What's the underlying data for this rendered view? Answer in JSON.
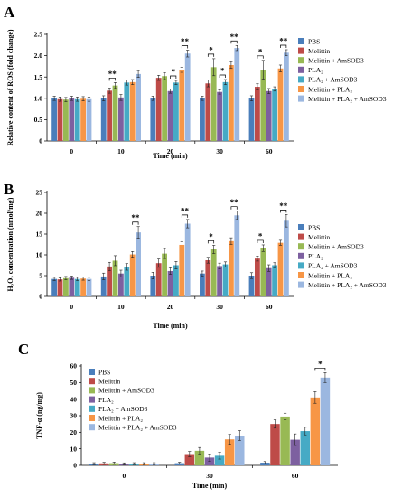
{
  "colors": {
    "PBS": "#4a7ebb",
    "Melittin": "#be4b48",
    "Melittin + AmSOD3": "#98b954",
    "PLA2": "#7d60a0",
    "PLA2 + AmSOD3": "#46aac5",
    "Melittin + PLA2": "#f79646",
    "Melittin + PLA2 + AmSOD3": "#9bb7e0"
  },
  "chart_data": [
    {
      "panel": "A",
      "type": "bar",
      "xlabel": "Time (min)",
      "ylabel": "Relative content of ROS (fold change)",
      "ylim": [
        0,
        2.5
      ],
      "yticks": [
        "0",
        "0.5",
        "1.0",
        "1.5",
        "2.0",
        "2.5"
      ],
      "categories": [
        "0",
        "10",
        "20",
        "30",
        "60"
      ],
      "legend_position": "right",
      "series": [
        {
          "name": "PBS",
          "legend_label": "PBS",
          "values": [
            1.0,
            1.0,
            1.0,
            1.0,
            1.0
          ],
          "errors": [
            0.05,
            0.06,
            0.05,
            0.05,
            0.06
          ]
        },
        {
          "name": "Melittin",
          "legend_label": "Melittin",
          "values": [
            0.98,
            1.18,
            1.48,
            1.35,
            1.27
          ],
          "errors": [
            0.05,
            0.06,
            0.06,
            0.08,
            0.07
          ]
        },
        {
          "name": "Melittin + AmSOD3",
          "legend_label": "Melittin + AmSOD3",
          "values": [
            0.97,
            1.3,
            1.52,
            1.73,
            1.67
          ],
          "errors": [
            0.05,
            0.07,
            0.08,
            0.2,
            0.22
          ]
        },
        {
          "name": "PLA2",
          "legend_label": "PLA₂",
          "values": [
            1.0,
            1.02,
            1.17,
            1.15,
            1.17
          ],
          "errors": [
            0.05,
            0.07,
            0.05,
            0.05,
            0.06
          ]
        },
        {
          "name": "PLA2 + AmSOD3",
          "legend_label": "PLA₂ + AmSOD3",
          "values": [
            0.98,
            1.37,
            1.37,
            1.38,
            1.22
          ],
          "errors": [
            0.05,
            0.06,
            0.05,
            0.06,
            0.05
          ]
        },
        {
          "name": "Melittin + PLA2",
          "legend_label": "Melittin + PLA₂",
          "values": [
            0.99,
            1.38,
            1.67,
            1.78,
            1.7
          ],
          "errors": [
            0.05,
            0.06,
            0.06,
            0.08,
            0.08
          ]
        },
        {
          "name": "Melittin + PLA2 + AmSOD3",
          "legend_label": "Melittin + PLA₂ + AmSOD3",
          "values": [
            0.98,
            1.57,
            2.05,
            2.18,
            2.07
          ],
          "errors": [
            0.05,
            0.08,
            0.08,
            0.06,
            0.07
          ]
        }
      ],
      "significance": [
        {
          "category": 1,
          "from": 1,
          "to": 2,
          "label": "**"
        },
        {
          "category": 2,
          "from": 3,
          "to": 4,
          "label": "*"
        },
        {
          "category": 2,
          "from": 5,
          "to": 6,
          "label": "**"
        },
        {
          "category": 3,
          "from": 1,
          "to": 2,
          "label": "*"
        },
        {
          "category": 3,
          "from": 3,
          "to": 4,
          "label": "*"
        },
        {
          "category": 3,
          "from": 5,
          "to": 6,
          "label": "**"
        },
        {
          "category": 4,
          "from": 1,
          "to": 2,
          "label": "*"
        },
        {
          "category": 4,
          "from": 5,
          "to": 6,
          "label": "**"
        }
      ]
    },
    {
      "panel": "B",
      "type": "bar",
      "xlabel": "Time (min)",
      "ylabel": "H₂O₂ concentration (nmol/mg)",
      "ylim": [
        0,
        25
      ],
      "yticks": [
        "0",
        "5",
        "10",
        "15",
        "20",
        "25"
      ],
      "categories": [
        "0",
        "10",
        "20",
        "30",
        "60"
      ],
      "legend_position": "right",
      "series": [
        {
          "name": "PBS",
          "legend_label": "PBS",
          "values": [
            4.2,
            4.8,
            5.0,
            5.5,
            5.0
          ],
          "errors": [
            0.4,
            0.8,
            0.8,
            0.6,
            0.7
          ]
        },
        {
          "name": "Melittin",
          "legend_label": "Melittin",
          "values": [
            4.1,
            7.2,
            8.0,
            8.7,
            9.1
          ],
          "errors": [
            0.4,
            1.0,
            1.0,
            0.7,
            0.6
          ]
        },
        {
          "name": "Melittin + AmSOD3",
          "legend_label": "Melittin + AmSOD3",
          "values": [
            4.4,
            8.6,
            10.3,
            11.3,
            11.6
          ],
          "errors": [
            0.4,
            1.2,
            1.2,
            1.0,
            0.8
          ]
        },
        {
          "name": "PLA2",
          "legend_label": "PLA₂",
          "values": [
            4.5,
            5.5,
            6.1,
            7.3,
            6.8
          ],
          "errors": [
            0.4,
            0.8,
            0.8,
            0.7,
            0.8
          ]
        },
        {
          "name": "PLA2 + AmSOD3",
          "legend_label": "PLA₂ + AmSOD3",
          "values": [
            4.2,
            7.1,
            7.5,
            7.7,
            7.5
          ],
          "errors": [
            0.4,
            0.8,
            0.9,
            0.6,
            0.6
          ]
        },
        {
          "name": "Melittin + PLA2",
          "legend_label": "Melittin + PLA₂",
          "values": [
            4.3,
            10.1,
            12.4,
            13.3,
            12.9
          ],
          "errors": [
            0.4,
            0.7,
            0.8,
            0.8,
            0.6
          ]
        },
        {
          "name": "Melittin + PLA2 + AmSOD3",
          "legend_label": "Melittin + PLA₂ + AmSOD3",
          "values": [
            4.2,
            15.4,
            17.5,
            19.5,
            18.2
          ],
          "errors": [
            0.4,
            1.4,
            1.0,
            1.0,
            1.5
          ]
        }
      ],
      "significance": [
        {
          "category": 1,
          "from": 5,
          "to": 6,
          "label": "**"
        },
        {
          "category": 2,
          "from": 5,
          "to": 6,
          "label": "**"
        },
        {
          "category": 3,
          "from": 1,
          "to": 2,
          "label": "*"
        },
        {
          "category": 3,
          "from": 5,
          "to": 6,
          "label": "**"
        },
        {
          "category": 4,
          "from": 1,
          "to": 2,
          "label": "*"
        },
        {
          "category": 4,
          "from": 5,
          "to": 6,
          "label": "**"
        }
      ]
    },
    {
      "panel": "C",
      "type": "bar",
      "xlabel": "Time (min)",
      "ylabel": "TNF-α (ng/mg)",
      "ylim": [
        0,
        60
      ],
      "yticks": [
        "0",
        "10",
        "20",
        "30",
        "40",
        "50",
        "60"
      ],
      "categories": [
        "0",
        "30",
        "60"
      ],
      "legend_position": "top-left",
      "series": [
        {
          "name": "PBS",
          "legend_label": "PBS",
          "values": [
            1.0,
            1.3,
            1.6
          ],
          "errors": [
            0.6,
            0.6,
            0.7
          ]
        },
        {
          "name": "Melittin",
          "legend_label": "Melittin",
          "values": [
            1.2,
            6.8,
            25.0
          ],
          "errors": [
            0.6,
            1.6,
            2.5
          ]
        },
        {
          "name": "Melittin + AmSOD3",
          "legend_label": "Melittin + AmSOD3",
          "values": [
            1.3,
            8.8,
            29.5
          ],
          "errors": [
            0.7,
            2.0,
            2.0
          ]
        },
        {
          "name": "PLA2",
          "legend_label": "PLA₂",
          "values": [
            0.9,
            4.7,
            15.5
          ],
          "errors": [
            0.6,
            2.2,
            3.5
          ]
        },
        {
          "name": "PLA2 + AmSOD3",
          "legend_label": "PLA₂ + AmSOD3",
          "values": [
            1.0,
            5.8,
            20.7
          ],
          "errors": [
            0.6,
            2.0,
            2.3
          ]
        },
        {
          "name": "Melittin + PLA2",
          "legend_label": "Melittin + PLA₂",
          "values": [
            1.0,
            15.7,
            41.0
          ],
          "errors": [
            0.6,
            3.0,
            3.5
          ]
        },
        {
          "name": "Melittin + PLA2 + AmSOD3",
          "legend_label": "Melittin + PLA₂ + AmSOD3",
          "values": [
            1.0,
            18.0,
            53.0
          ],
          "errors": [
            0.6,
            3.0,
            3.0
          ]
        }
      ],
      "significance": [
        {
          "category": 2,
          "from": 5,
          "to": 6,
          "label": "*"
        }
      ]
    }
  ]
}
